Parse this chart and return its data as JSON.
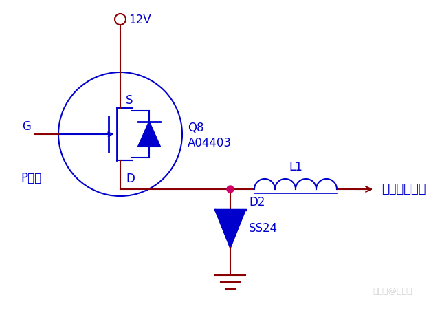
{
  "bg_color": "#ffffff",
  "wire_color": "#8B0000",
  "component_color": "#0000CD",
  "text_color_blue": "#0000CD",
  "dot_color": "#CC0066",
  "label_12V": "12V",
  "label_G": "G",
  "label_S": "S",
  "label_D": "D",
  "label_Q8": "Q8",
  "label_A04403": "A04403",
  "label_P": "P沟道",
  "label_L1": "L1",
  "label_D2": "D2",
  "label_SS24": "SS24",
  "label_output": "功率放大电路",
  "label_watermark": "搜狐号@刘坚强"
}
